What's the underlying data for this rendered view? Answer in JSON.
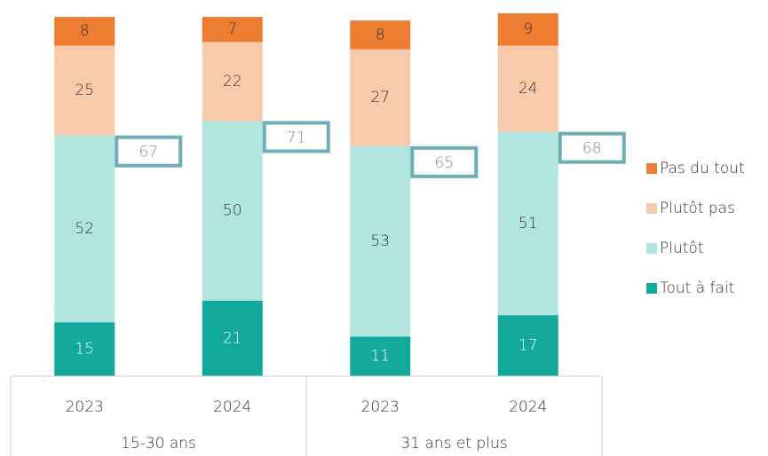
{
  "chart_data": {
    "type": "stacked_bar",
    "categories": [
      "2023",
      "2024",
      "2023",
      "2024"
    ],
    "groups": [
      "15-30 ans",
      "31 ans et plus"
    ],
    "series": [
      {
        "name": "Tout à fait",
        "color": "#12a89b",
        "values": [
          15,
          21,
          11,
          17
        ]
      },
      {
        "name": "Plutôt",
        "color": "#b2e4e0",
        "values": [
          52,
          50,
          53,
          51
        ]
      },
      {
        "name": "Plutôt pas",
        "color": "#f8caac",
        "values": [
          25,
          22,
          27,
          24
        ]
      },
      {
        "name": "Pas du tout",
        "color": "#ed7d31",
        "values": [
          8,
          7,
          8,
          9
        ]
      }
    ],
    "annotations": [
      67,
      71,
      65,
      68
    ],
    "legend": "right"
  }
}
